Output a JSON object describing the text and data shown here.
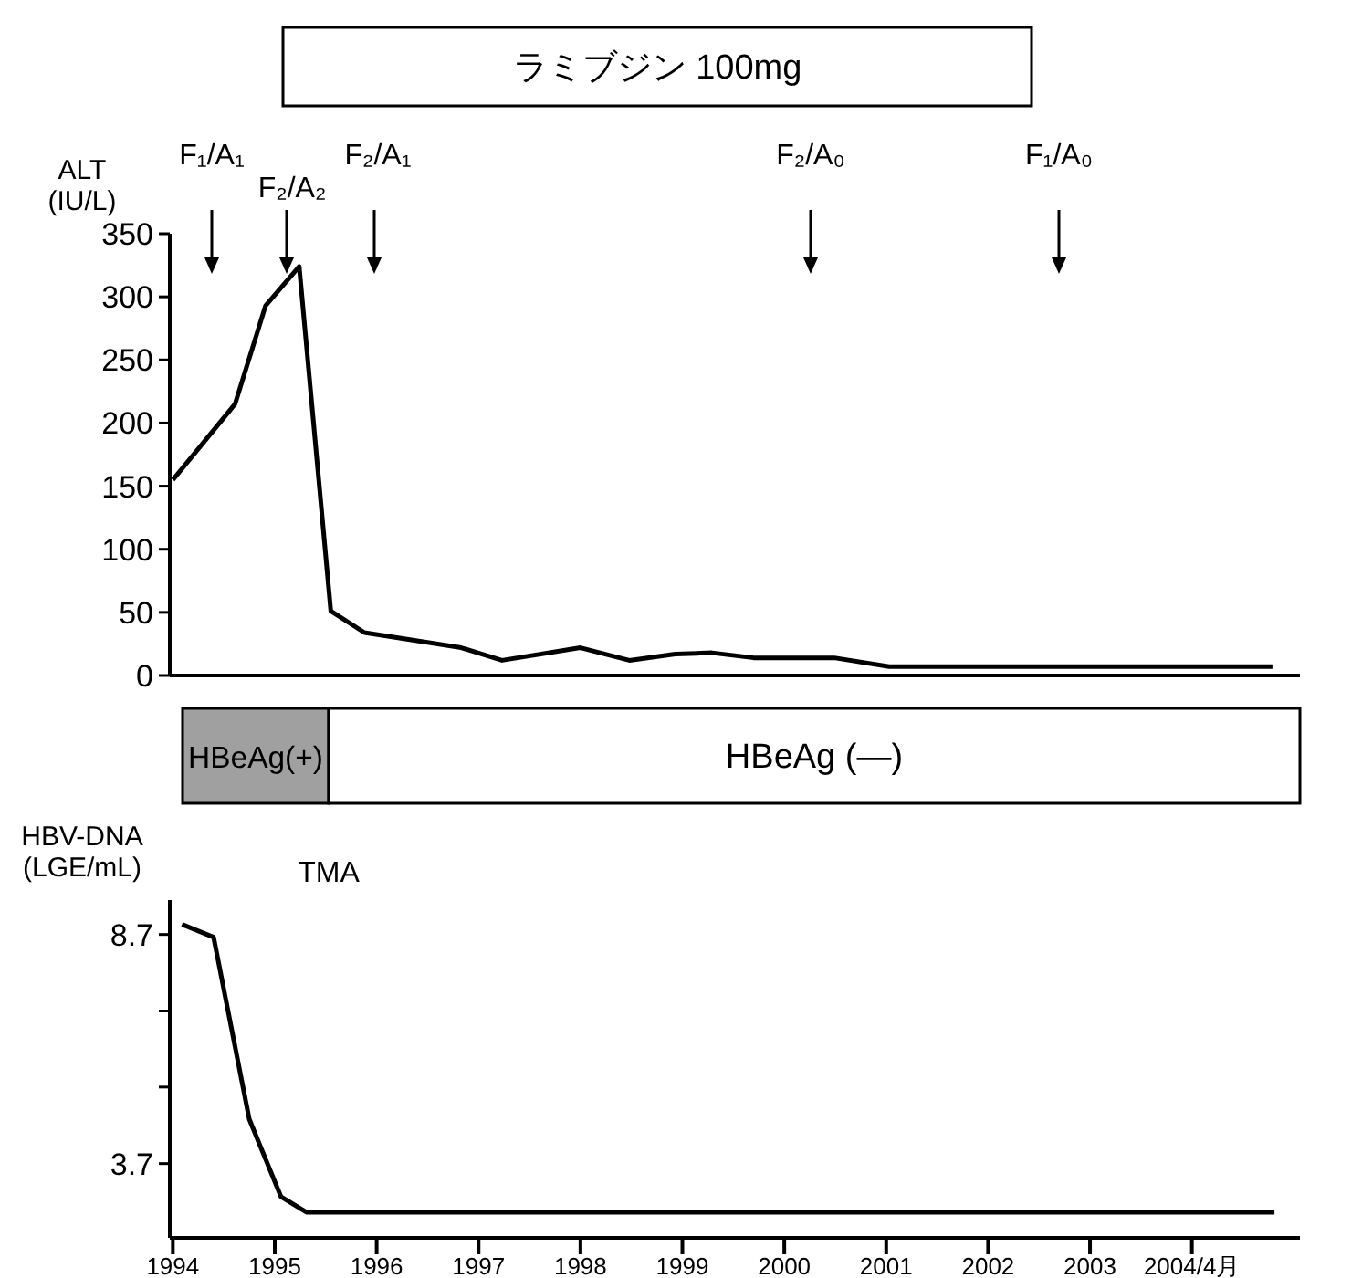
{
  "chart_data": [
    {
      "type": "line",
      "ylabel": "ALT (IU/L)",
      "xlim": [
        1993.97,
        2005.06
      ],
      "ylim": [
        0,
        350
      ],
      "yticks": [
        0,
        50,
        100,
        150,
        200,
        250,
        300,
        350
      ],
      "tick_labels": "y",
      "grid": false,
      "marker": "none",
      "line_style": "solid",
      "x": [
        1994.0,
        1994.61,
        1994.91,
        1995.24,
        1995.55,
        1995.88,
        1996.83,
        1997.23,
        1998.0,
        1998.48,
        1998.93,
        1999.29,
        1999.7,
        2000.49,
        2001.03,
        2004.79
      ],
      "series": [
        {
          "color": "#000000",
          "values": [
            155,
            215,
            293,
            324,
            51,
            34,
            22,
            12,
            22,
            12,
            17,
            18,
            14,
            14,
            7,
            7
          ]
        }
      ],
      "annotations": [
        "ラミブジン 100mg",
        "F₁/A₁",
        "F₂/A₂",
        "F₂/A₁",
        "F₂/A₀",
        "F₁/A₀"
      ]
    },
    {
      "type": "line",
      "ylabel": "HBV-DNA (LGE/mL)",
      "xlim": [
        1993.97,
        2005.06
      ],
      "ylim": [
        2.08,
        9.45
      ],
      "yticks": [
        3.7,
        {
          "value": 5.37,
          "label": null
        },
        {
          "value": 7.03,
          "label": null
        },
        8.7
      ],
      "grid": false,
      "marker": "none",
      "line_style": "solid",
      "xticks": [
        1994,
        1995,
        1996,
        1997,
        1998,
        1999,
        2000,
        2001,
        2002,
        2003,
        {
          "value": 2004,
          "label": "2004/4月"
        }
      ],
      "x": [
        1994.09,
        1994.4,
        1994.75,
        1995.06,
        1995.31,
        2004.81
      ],
      "series": [
        {
          "color": "#000000",
          "values": [
            8.92,
            8.64,
            4.67,
            2.98,
            2.64,
            2.64
          ]
        }
      ],
      "annotations": [
        "HBeAg(+)",
        "HBeAg (—)",
        "TMA"
      ]
    }
  ]
}
